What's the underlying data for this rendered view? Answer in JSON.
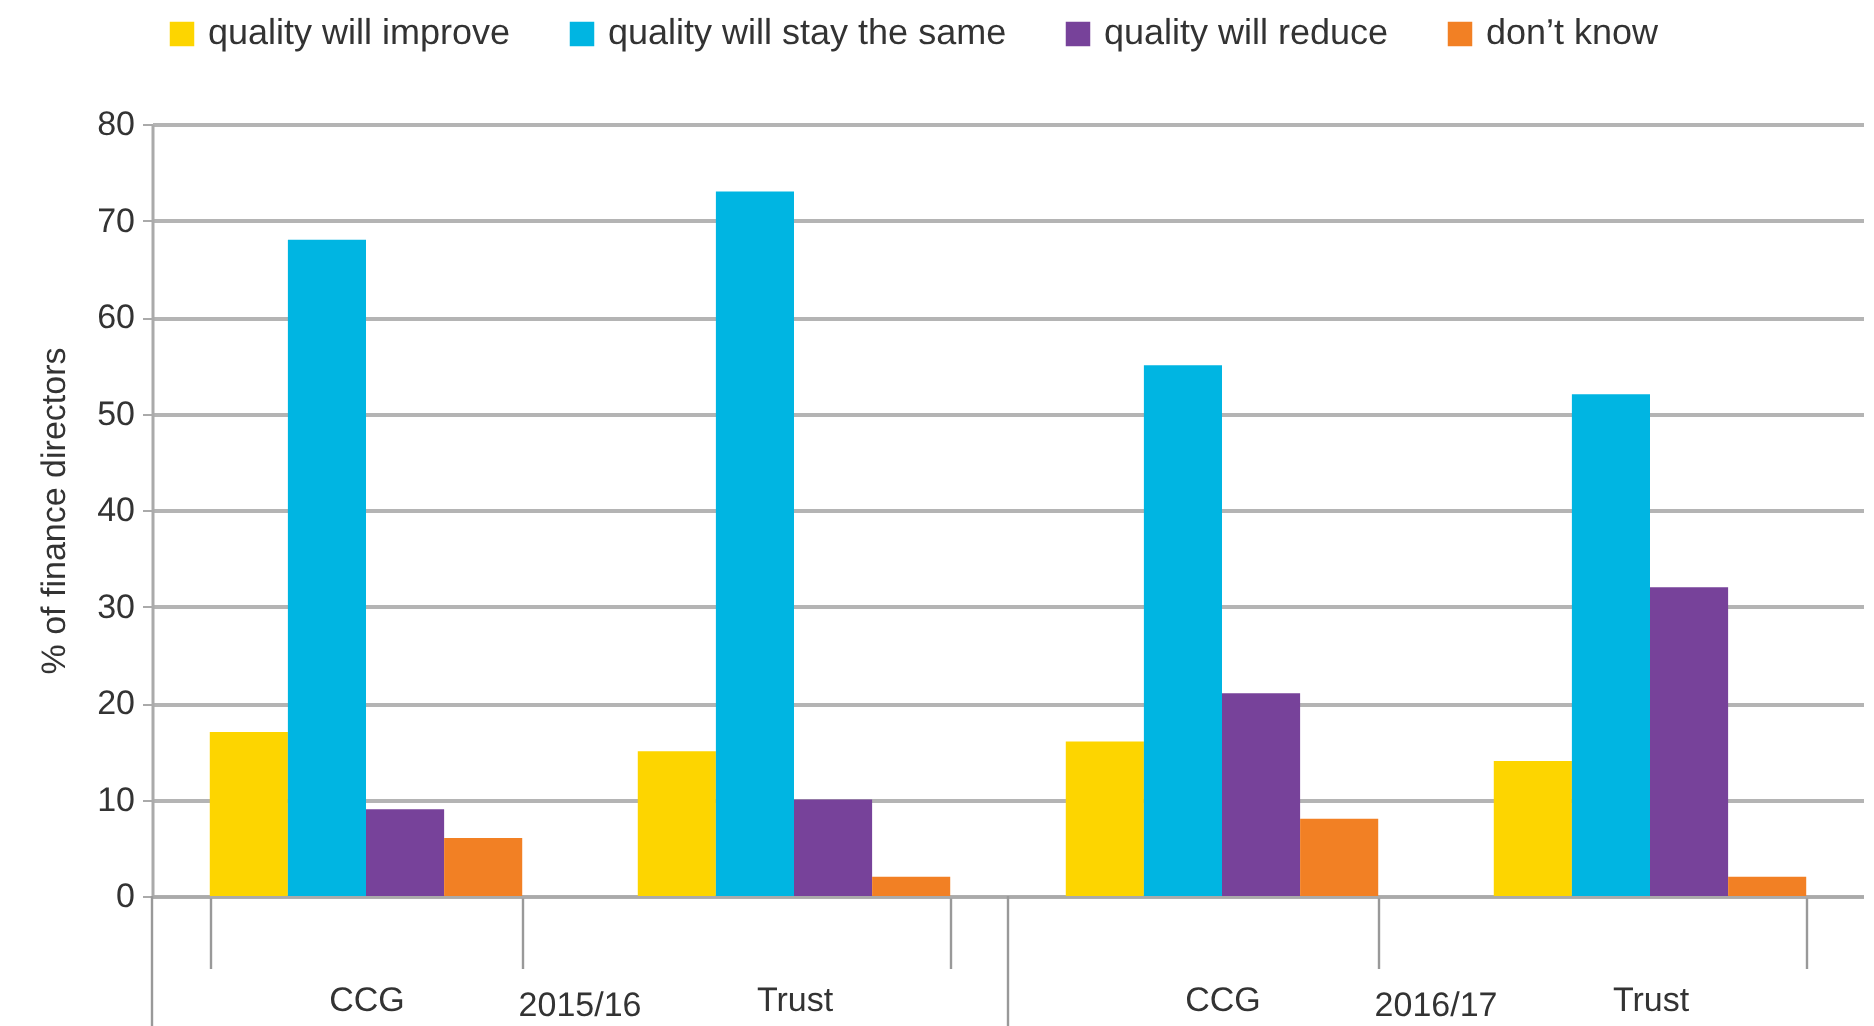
{
  "chart_data": {
    "type": "bar",
    "ylabel": "% of finance directors",
    "categories": [
      "CCG",
      "Trust",
      "CCG",
      "Trust"
    ],
    "series": [
      {
        "name": "quality will improve",
        "color": "#fdd500",
        "values": [
          17,
          15,
          16,
          14
        ]
      },
      {
        "name": "quality will stay the same",
        "color": "#00b5e2",
        "values": [
          68,
          73,
          55,
          52
        ]
      },
      {
        "name": "quality will reduce",
        "color": "#77429a",
        "values": [
          9,
          10,
          21,
          32
        ]
      },
      {
        "name": "don’t know",
        "color": "#f28024",
        "values": [
          6,
          2,
          8,
          2
        ]
      }
    ],
    "ylim": [
      0,
      80
    ],
    "yticks": [
      0,
      10,
      20,
      30,
      40,
      50,
      60,
      70,
      80
    ],
    "annotations": [
      "2015/16",
      "2016/17"
    ],
    "grid": "y",
    "legend": "top"
  }
}
